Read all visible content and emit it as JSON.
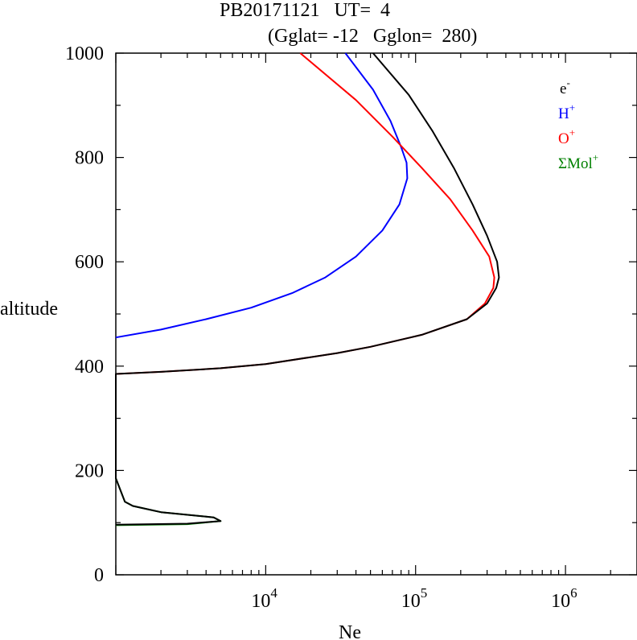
{
  "chart_data": {
    "type": "line",
    "title_line1": "PB20171121   UT=  4",
    "title_line2": "(Gglat= -12   Gglon=  280)",
    "xlabel": "Ne",
    "ylabel": "altitude",
    "x_scale": "log",
    "xlim": [
      1000,
      3000000
    ],
    "ylim": [
      0,
      1000
    ],
    "y_ticks": [
      0,
      200,
      400,
      600,
      800,
      1000
    ],
    "y_tick_labels": [
      "0",
      "200",
      "400",
      "600",
      "800",
      "1000"
    ],
    "x_ticks": [
      10000,
      100000,
      1000000
    ],
    "x_tick_labels": [
      {
        "base": "10",
        "exp": "4"
      },
      {
        "base": "10",
        "exp": "5"
      },
      {
        "base": "10",
        "exp": "6"
      }
    ],
    "legend": [
      {
        "label": "e",
        "sup": "-",
        "color": "#000000"
      },
      {
        "label": "H",
        "sup": "+",
        "color": "#0000ff"
      },
      {
        "label": "O",
        "sup": "+",
        "color": "#ff0000"
      },
      {
        "label": "ΣMol",
        "sup": "+",
        "color": "#008000"
      }
    ],
    "legend_position": "top-right",
    "series": [
      {
        "name": "e-",
        "color": "#000000",
        "points": [
          [
            1000,
            96
          ],
          [
            3000,
            98
          ],
          [
            5000,
            103
          ],
          [
            4500,
            110
          ],
          [
            2000,
            120
          ],
          [
            1300,
            132
          ],
          [
            1150,
            140
          ],
          [
            1000,
            185
          ],
          [
            1000,
            385
          ],
          [
            2000,
            389
          ],
          [
            5000,
            396
          ],
          [
            10000,
            404
          ],
          [
            30000,
            425
          ],
          [
            50000,
            437
          ],
          [
            110000,
            460
          ],
          [
            220000,
            490
          ],
          [
            300000,
            520
          ],
          [
            345000,
            550
          ],
          [
            360000,
            570
          ],
          [
            350000,
            600
          ],
          [
            300000,
            650
          ],
          [
            240000,
            710
          ],
          [
            180000,
            780
          ],
          [
            130000,
            850
          ],
          [
            90000,
            920
          ],
          [
            52000,
            1000
          ]
        ]
      },
      {
        "name": "H+",
        "color": "#0000ff",
        "points": [
          [
            1000,
            455
          ],
          [
            2000,
            470
          ],
          [
            4000,
            490
          ],
          [
            8000,
            512
          ],
          [
            15000,
            540
          ],
          [
            25000,
            570
          ],
          [
            40000,
            610
          ],
          [
            60000,
            660
          ],
          [
            78000,
            710
          ],
          [
            88000,
            760
          ],
          [
            87000,
            790
          ],
          [
            80000,
            820
          ],
          [
            68000,
            870
          ],
          [
            52000,
            930
          ],
          [
            34000,
            1000
          ]
        ]
      },
      {
        "name": "O+",
        "color": "#ff0000",
        "points": [
          [
            1000,
            385
          ],
          [
            2000,
            389
          ],
          [
            5000,
            396
          ],
          [
            10000,
            404
          ],
          [
            30000,
            425
          ],
          [
            50000,
            437
          ],
          [
            110000,
            460
          ],
          [
            220000,
            490
          ],
          [
            290000,
            520
          ],
          [
            330000,
            550
          ],
          [
            335000,
            570
          ],
          [
            310000,
            610
          ],
          [
            240000,
            660
          ],
          [
            170000,
            720
          ],
          [
            110000,
            780
          ],
          [
            70000,
            840
          ],
          [
            40000,
            910
          ],
          [
            17000,
            1000
          ]
        ]
      },
      {
        "name": "ΣMol+",
        "color": "#008000",
        "points": [
          [
            1000,
            95
          ],
          [
            3000,
            97
          ],
          [
            5000,
            103
          ],
          [
            4500,
            110
          ],
          [
            2000,
            120
          ],
          [
            1300,
            132
          ],
          [
            1150,
            140
          ],
          [
            1000,
            185
          ]
        ]
      }
    ]
  }
}
